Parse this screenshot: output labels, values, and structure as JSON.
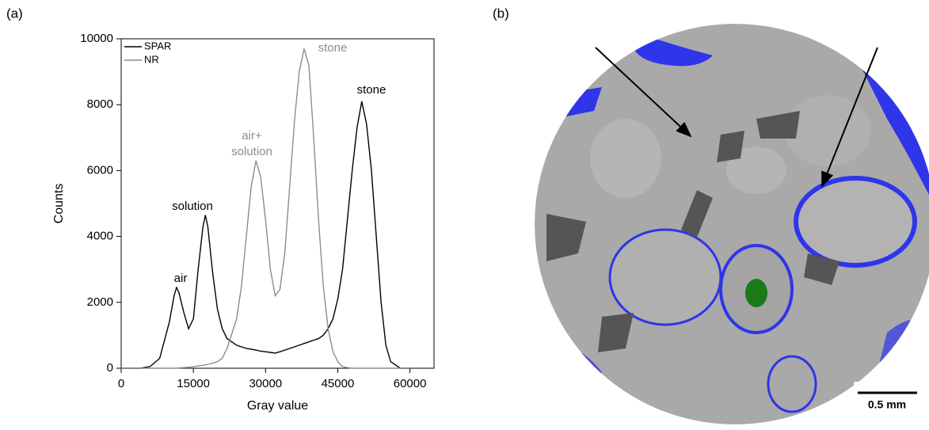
{
  "chart_data": {
    "type": "line",
    "xlabel": "Gray value",
    "ylabel": "Counts",
    "x": [
      0,
      4000,
      6000,
      8000,
      10000,
      11000,
      11500,
      12000,
      13000,
      14000,
      15000,
      16000,
      17000,
      17500,
      18000,
      19000,
      20000,
      21000,
      22000,
      24000,
      25000,
      26000,
      27000,
      28000,
      29000,
      30000,
      31000,
      32000,
      33000,
      34000,
      35000,
      36000,
      37000,
      38000,
      39000,
      40000,
      41000,
      42000,
      43000,
      44000,
      45000,
      46000,
      47000,
      48000,
      49000,
      50000,
      51000,
      52000,
      53000,
      54000,
      55000,
      56000,
      58000,
      60000
    ],
    "series": [
      {
        "name": "SPAR",
        "color": "#000000",
        "values": [
          0,
          0,
          50,
          300,
          1400,
          2200,
          2450,
          2300,
          1700,
          1200,
          1500,
          3000,
          4300,
          4650,
          4300,
          2900,
          1800,
          1200,
          900,
          700,
          650,
          600,
          580,
          550,
          520,
          500,
          480,
          460,
          500,
          550,
          600,
          650,
          700,
          750,
          800,
          850,
          900,
          1000,
          1200,
          1500,
          2100,
          3000,
          4500,
          6000,
          7300,
          8100,
          7400,
          6000,
          4000,
          2000,
          700,
          200,
          0,
          0
        ]
      },
      {
        "name": "NR",
        "color": "#8c8c8c",
        "values": [
          0,
          0,
          0,
          0,
          0,
          0,
          0,
          10,
          20,
          30,
          50,
          70,
          90,
          100,
          120,
          150,
          200,
          300,
          600,
          1500,
          2500,
          4000,
          5500,
          6300,
          5800,
          4500,
          3000,
          2200,
          2400,
          3500,
          5500,
          7500,
          9000,
          9700,
          9200,
          7000,
          4500,
          2500,
          1200,
          500,
          200,
          50,
          20,
          0,
          0,
          0,
          0,
          0,
          0,
          0,
          0,
          0,
          0,
          0
        ]
      }
    ],
    "xlim": [
      0,
      65000
    ],
    "xticks": [
      0,
      15000,
      30000,
      45000,
      60000
    ],
    "ylim": [
      0,
      10000
    ],
    "yticks": [
      0,
      2000,
      4000,
      6000,
      8000,
      10000
    ],
    "legend": "upper left",
    "annotations": [
      {
        "text": "air",
        "color": "#000000"
      },
      {
        "text": "solution",
        "color": "#000000"
      },
      {
        "text": "stone",
        "color": "#000000"
      },
      {
        "text": "air+",
        "color": "#8c8c8c"
      },
      {
        "text": "solution",
        "color": "#8c8c8c"
      },
      {
        "text": "stone",
        "color": "#8c8c8c"
      }
    ]
  },
  "panel_labels": [
    "(a)",
    "(b)"
  ],
  "scale_bar": "0.5 mm"
}
